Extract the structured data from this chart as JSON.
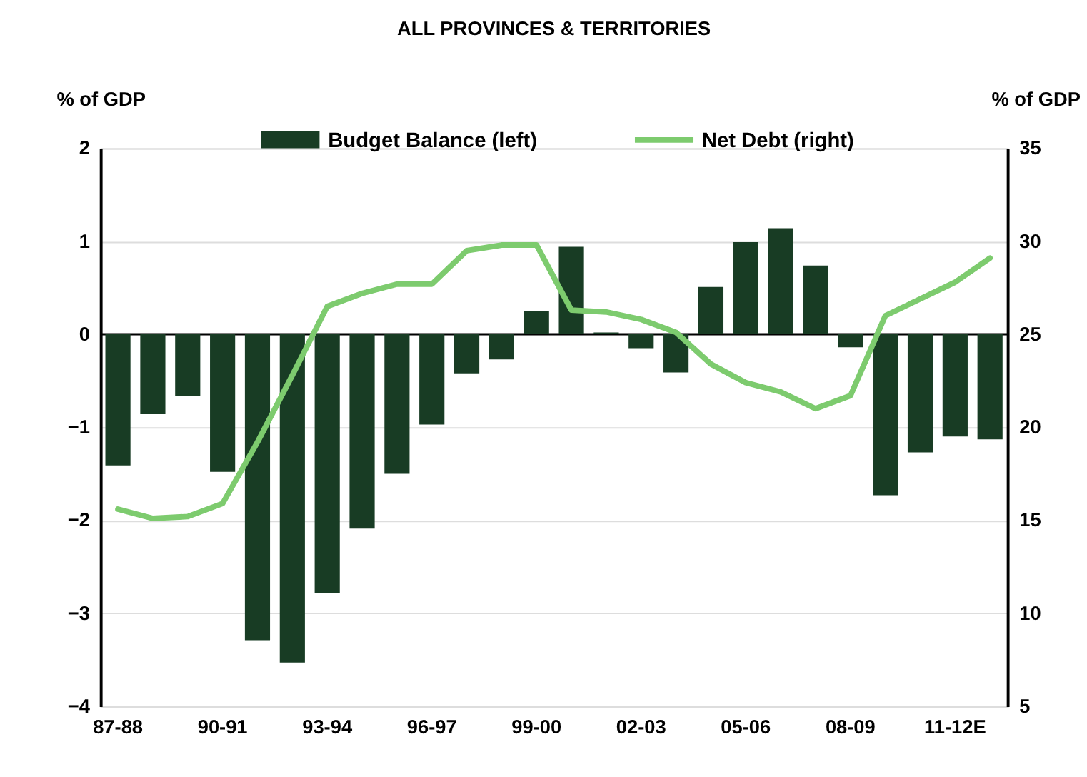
{
  "chart_data": {
    "type": "bar",
    "title": "ALL PROVINCES & TERRITORIES",
    "ylabel": "% of GDP",
    "y2label": "% of GDP",
    "categories": [
      "87-88",
      null,
      null,
      "90-91",
      null,
      null,
      "93-94",
      null,
      null,
      "96-97",
      null,
      null,
      "99-00",
      null,
      null,
      "02-03",
      null,
      null,
      "05-06",
      null,
      null,
      "08-09",
      null,
      null,
      "11-12E",
      null
    ],
    "series": [
      {
        "name": "Budget Balance (left)",
        "color": "#183c24",
        "values": [
          -1.41,
          -0.86,
          -0.66,
          -1.48,
          -3.29,
          -3.53,
          -2.78,
          -2.09,
          -1.5,
          -0.97,
          -0.42,
          -0.27,
          0.25,
          0.94,
          0.02,
          -0.15,
          -0.41,
          0.51,
          0.99,
          1.14,
          0.74,
          -0.14,
          -1.73,
          -1.27,
          -1.1,
          -1.13
        ]
      },
      {
        "name": "Net Debt (right)",
        "type": "line",
        "axis": "y2",
        "color": "#7dcb6e",
        "values": [
          15.6,
          15.1,
          15.2,
          15.9,
          19.2,
          22.8,
          26.5,
          27.2,
          27.7,
          27.7,
          29.5,
          29.8,
          29.8,
          26.3,
          26.2,
          25.8,
          25.1,
          23.4,
          22.4,
          21.9,
          21.0,
          21.7,
          26.0,
          26.9,
          27.8,
          29.1
        ]
      }
    ],
    "ylim": [
      -4,
      2
    ],
    "yticks": [
      -4,
      -3,
      -2,
      -1,
      0,
      1,
      2
    ],
    "y2lim": [
      5,
      35
    ],
    "y2ticks": [
      5,
      10,
      15,
      20,
      25,
      30,
      35
    ],
    "grid": "y",
    "legend": "top"
  }
}
